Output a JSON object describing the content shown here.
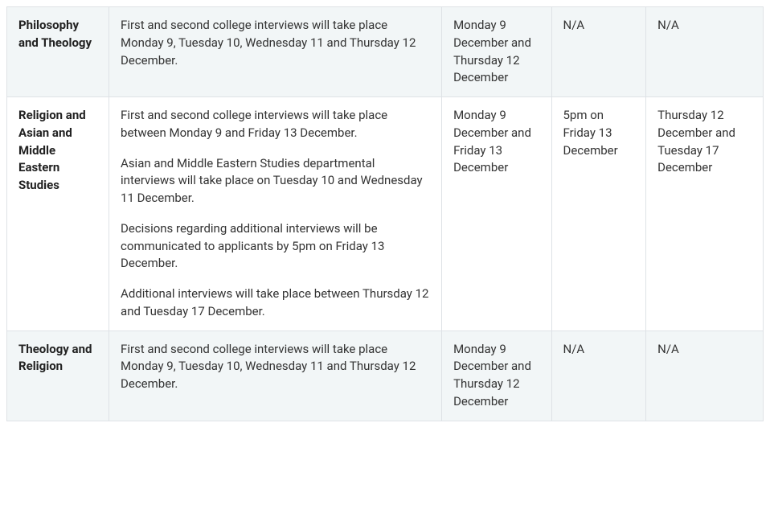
{
  "colors": {
    "border": "#dee2e6",
    "striped_bg": "#f2f6f7",
    "plain_bg": "#ffffff",
    "text": "#333333"
  },
  "columns": {
    "widths_pct": [
      13.5,
      44,
      14.5,
      12.5,
      15.5
    ]
  },
  "rows": [
    {
      "striped": true,
      "course": "Philosophy and Theology",
      "details": [
        "First and second college interviews will take place Monday 9, Tuesday 10, Wednesday 11 and Thursday 12 December."
      ],
      "col3": "Monday 9 December and Thursday 12 December",
      "col4": "N/A",
      "col5": "N/A"
    },
    {
      "striped": false,
      "course": "Religion and Asian and Middle Eastern Studies",
      "details": [
        "First and second college interviews will take place between Monday 9 and Friday 13 December.",
        "Asian and Middle Eastern Studies departmental interviews will take place on Tuesday 10 and Wednesday 11 December.",
        "Decisions regarding additional interviews will be communicated to applicants by 5pm on Friday 13 December.",
        "Additional interviews will take place between Thursday 12 and Tuesday 17 December."
      ],
      "col3": "Monday 9 December and Friday 13 December",
      "col4": "5pm on Friday 13 December",
      "col5": "Thursday 12 December and Tuesday 17 December"
    },
    {
      "striped": true,
      "course": "Theology and Religion",
      "details": [
        "First and second college interviews will take place Monday 9, Tuesday 10, Wednesday 11 and Thursday 12 December."
      ],
      "col3": "Monday 9 December and Thursday 12 December",
      "col4": "N/A",
      "col5": "N/A"
    }
  ]
}
